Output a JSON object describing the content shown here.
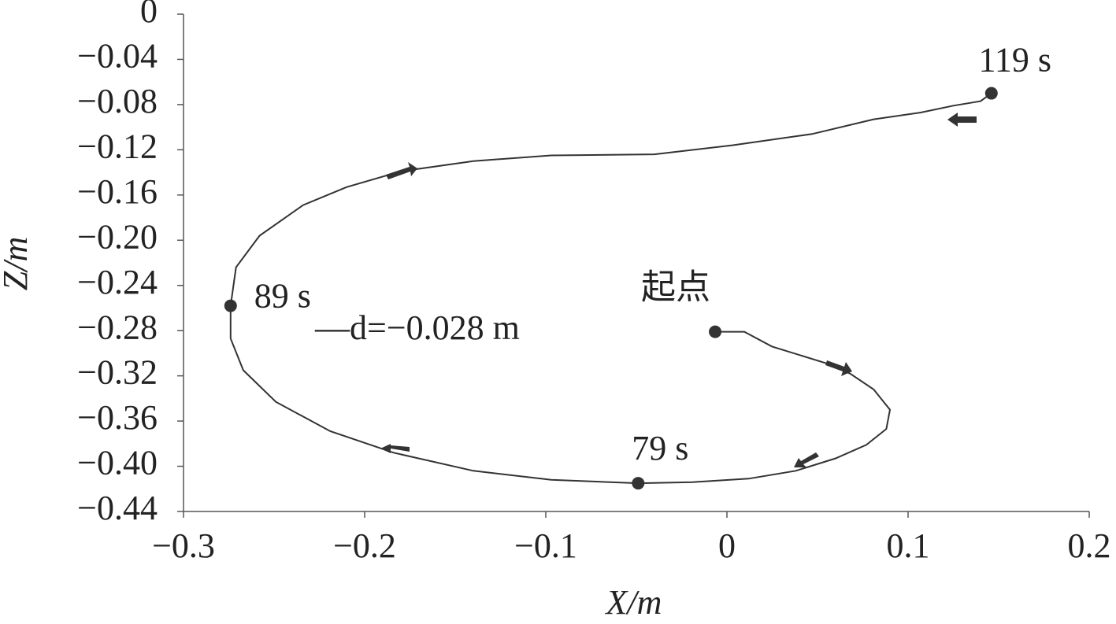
{
  "chart_data": {
    "type": "line",
    "x_label": "X/m",
    "y_label": "Z/m",
    "xlim": [
      -0.3,
      0.2
    ],
    "xticks": [
      {
        "value": -0.3,
        "label": "−0.3"
      },
      {
        "value": -0.2,
        "label": "−0.2"
      },
      {
        "value": -0.1,
        "label": "−0.1"
      },
      0,
      0.1,
      0.2
    ],
    "ylim": [
      -0.44,
      0
    ],
    "yticks": [
      0,
      {
        "value": -0.04,
        "label": "−0.04"
      },
      {
        "value": -0.08,
        "label": "−0.08"
      },
      {
        "value": -0.12,
        "label": "−0.12"
      },
      {
        "value": -0.16,
        "label": "−0.16"
      },
      {
        "value": -0.2,
        "label": "−0.20"
      },
      {
        "value": -0.24,
        "label": "−0.24"
      },
      {
        "value": -0.28,
        "label": "−0.28"
      },
      {
        "value": -0.32,
        "label": "−0.32"
      },
      {
        "value": -0.36,
        "label": "−0.36"
      },
      {
        "value": -0.4,
        "label": "−0.40"
      },
      {
        "value": -0.44,
        "label": "−0.44"
      }
    ],
    "color": "#333333",
    "x": [
      -0.0065,
      0.0096,
      0.0248,
      0.055,
      0.068,
      0.081,
      0.09,
      0.088,
      0.077,
      0.06,
      0.038,
      0.012,
      -0.019,
      -0.049,
      -0.097,
      -0.14,
      -0.184,
      -0.219,
      -0.249,
      -0.267,
      -0.274,
      -0.274,
      -0.271,
      -0.258,
      -0.234,
      -0.21,
      -0.18,
      -0.14,
      -0.097,
      -0.04,
      0.003,
      0.047,
      0.081,
      0.107,
      0.125,
      0.14,
      0.146
    ],
    "values": [
      -0.281,
      -0.281,
      -0.294,
      -0.309,
      -0.318,
      -0.332,
      -0.35,
      -0.367,
      -0.381,
      -0.393,
      -0.404,
      -0.411,
      -0.414,
      -0.415,
      -0.412,
      -0.404,
      -0.388,
      -0.369,
      -0.343,
      -0.315,
      -0.287,
      -0.258,
      -0.224,
      -0.196,
      -0.169,
      -0.153,
      -0.139,
      -0.13,
      -0.125,
      -0.124,
      -0.116,
      -0.106,
      -0.093,
      -0.087,
      -0.081,
      -0.077,
      -0.07
    ],
    "markers": {
      "x": [
        -0.0065,
        -0.049,
        -0.274,
        0.146
      ],
      "values": [
        -0.281,
        -0.415,
        -0.258,
        -0.07
      ],
      "labels": [
        "起点",
        "79 s",
        "89 s",
        "119 s"
      ]
    },
    "annotation": "—d=−0.028 m"
  }
}
